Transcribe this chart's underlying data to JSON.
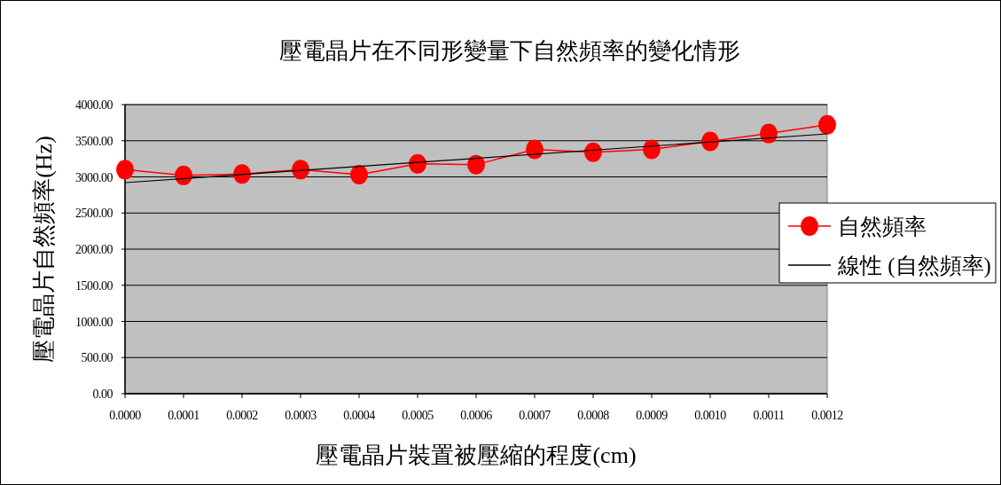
{
  "chart_data": {
    "type": "line",
    "title": "壓電晶片在不同形變量下自然頻率的變化情形",
    "xlabel": "壓電晶片裝置被壓縮的程度(cm)",
    "ylabel": "壓電晶片自然頻率(Hz)",
    "x": [
      0,
      0.0001,
      0.0002,
      0.0003,
      0.0004,
      0.0005,
      0.0006,
      0.0007,
      0.0008,
      0.0009,
      0.001,
      0.0011,
      0.0012
    ],
    "series": [
      {
        "name": "自然頻率",
        "color": "#ff0000",
        "marker": "circle",
        "values": [
          3100,
          3020,
          3040,
          3100,
          3030,
          3180,
          3170,
          3380,
          3340,
          3380,
          3490,
          3600,
          3720
        ]
      },
      {
        "name": "線性 (自然頻率)",
        "type": "line",
        "color": "#000000",
        "marker": "none",
        "x": [
          0,
          0.0012
        ],
        "values": [
          2920,
          3595
        ]
      }
    ],
    "xlim": [
      0,
      0.0012
    ],
    "xticks": [
      {
        "value": 0,
        "label": "0.0000"
      },
      {
        "value": 0.0001,
        "label": "0.0001"
      },
      {
        "value": 0.0002,
        "label": "0.0002"
      },
      {
        "value": 0.0003,
        "label": "0.0003"
      },
      {
        "value": 0.0004,
        "label": "0.0004"
      },
      {
        "value": 0.0005,
        "label": "0.0005"
      },
      {
        "value": 0.0006,
        "label": "0.0006"
      },
      {
        "value": 0.0007,
        "label": "0.0007"
      },
      {
        "value": 0.0008,
        "label": "0.0008"
      },
      {
        "value": 0.0009,
        "label": "0.0009"
      },
      {
        "value": 0.001,
        "label": "0.0010"
      },
      {
        "value": 0.0011,
        "label": "0.0011"
      },
      {
        "value": 0.0012,
        "label": "0.0012"
      }
    ],
    "ylim": [
      0,
      4000
    ],
    "yticks": [
      {
        "value": 0,
        "label": "0.00"
      },
      {
        "value": 500,
        "label": "500.00"
      },
      {
        "value": 1000,
        "label": "1000.00"
      },
      {
        "value": 1500,
        "label": "1500.00"
      },
      {
        "value": 2000,
        "label": "2000.00"
      },
      {
        "value": 2500,
        "label": "2500.00"
      },
      {
        "value": 3000,
        "label": "3000.00"
      },
      {
        "value": 3500,
        "label": "3500.00"
      },
      {
        "value": 4000,
        "label": "4000.00"
      }
    ],
    "grid": "y",
    "legend": "right"
  }
}
